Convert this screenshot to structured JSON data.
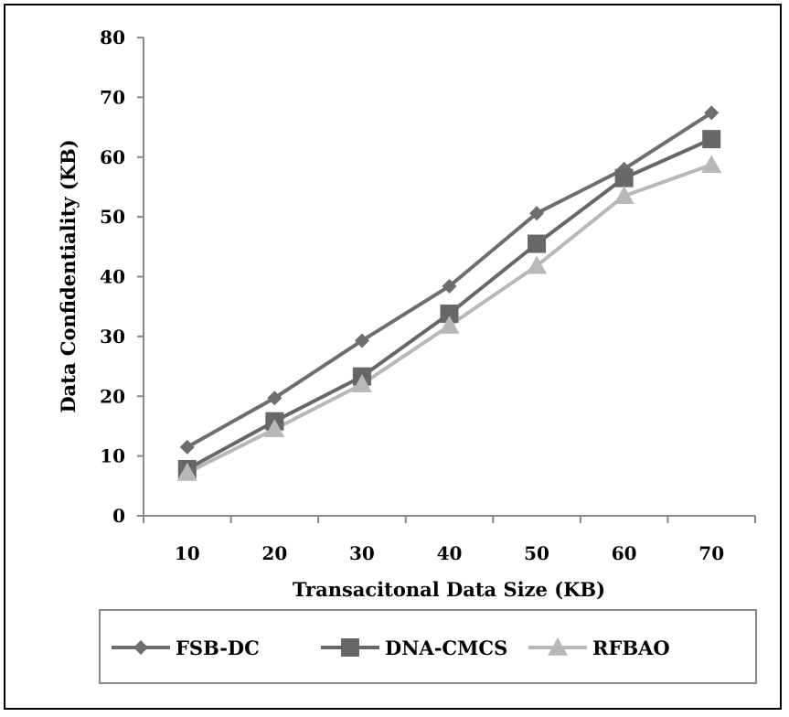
{
  "chart_data": {
    "type": "line",
    "title": "",
    "xlabel": "Transacitonal Data Size (KB)",
    "ylabel": "Data Confidentiality (KB)",
    "categories": [
      "10",
      "20",
      "30",
      "40",
      "50",
      "60",
      "70"
    ],
    "ylim": [
      0,
      80
    ],
    "yticks": [
      "0",
      "10",
      "20",
      "30",
      "40",
      "50",
      "60",
      "70",
      "80"
    ],
    "grid": false,
    "legend_position": "bottom",
    "series": [
      {
        "name": "FSB-DC",
        "marker": "diamond",
        "color": "#6e6e6e",
        "values": [
          11.5,
          19.7,
          29.3,
          38.4,
          50.6,
          58.0,
          67.4
        ]
      },
      {
        "name": "DNA-CMCS",
        "marker": "square",
        "color": "#676767",
        "values": [
          7.8,
          15.8,
          23.3,
          33.8,
          45.5,
          56.5,
          63.0
        ]
      },
      {
        "name": "RFBAO",
        "marker": "triangle",
        "color": "#b8b8b8",
        "values": [
          7.2,
          14.5,
          22.0,
          31.8,
          41.8,
          53.5,
          58.7
        ]
      }
    ]
  }
}
